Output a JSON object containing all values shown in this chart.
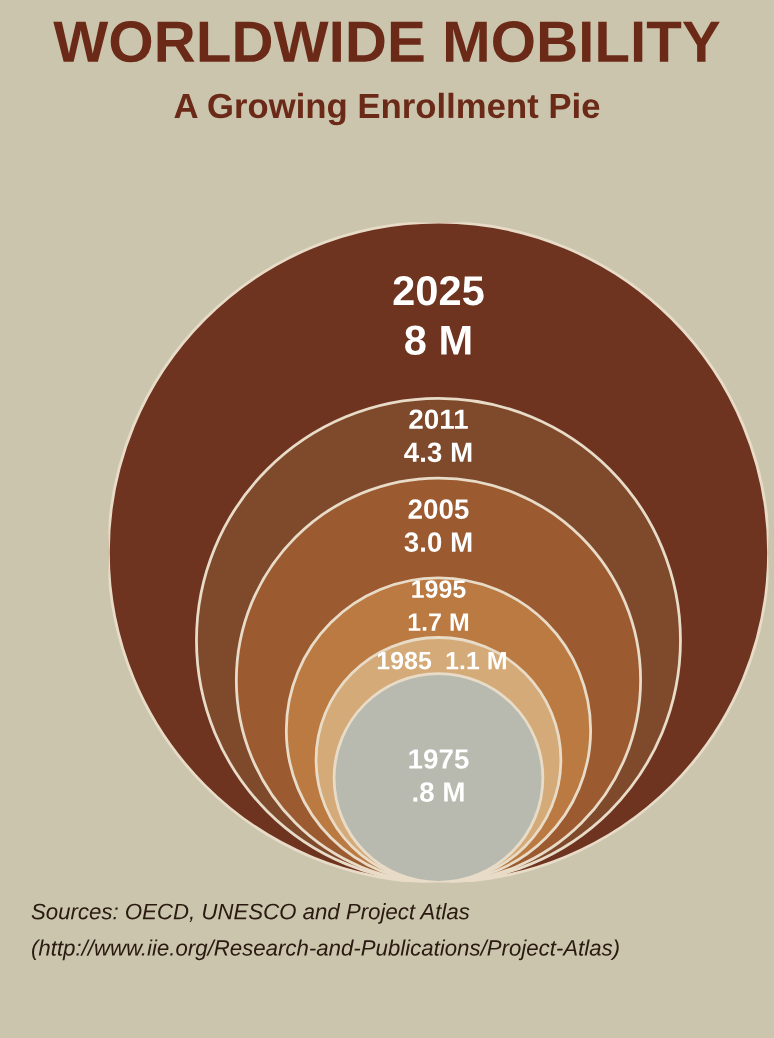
{
  "chart_data": {
    "type": "other",
    "title": "WORLDWIDE MOBILITY",
    "subtitle": "A Growing Enrollment Pie",
    "categories": [
      "2025",
      "2011",
      "2005",
      "1995",
      "1985",
      "1975"
    ],
    "values": [
      8,
      4.3,
      3.0,
      1.7,
      1.1,
      0.8
    ],
    "value_labels": [
      "8 M",
      "4.3 M",
      "3.0 M",
      "1.7 M",
      "1.1 M",
      ".8 M"
    ],
    "colors": [
      "#6e3420",
      "#7f4a2b",
      "#9c5a30",
      "#bb7a42",
      "#d4ab78",
      "#b8bab0"
    ],
    "annotations": [
      "Sources: OECD, UNESCO and Project Atlas",
      "(http://www.iie.org/Research-and-Publications/Project-Atlas)"
    ]
  }
}
